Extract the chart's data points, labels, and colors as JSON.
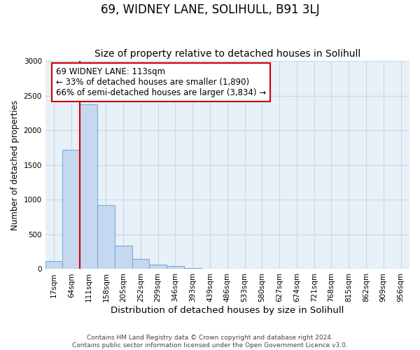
{
  "title": "69, WIDNEY LANE, SOLIHULL, B91 3LJ",
  "subtitle": "Size of property relative to detached houses in Solihull",
  "xlabel": "Distribution of detached houses by size in Solihull",
  "ylabel": "Number of detached properties",
  "bin_labels": [
    "17sqm",
    "64sqm",
    "111sqm",
    "158sqm",
    "205sqm",
    "252sqm",
    "299sqm",
    "346sqm",
    "393sqm",
    "439sqm",
    "486sqm",
    "533sqm",
    "580sqm",
    "627sqm",
    "674sqm",
    "721sqm",
    "768sqm",
    "815sqm",
    "862sqm",
    "909sqm",
    "956sqm"
  ],
  "bar_values": [
    120,
    1720,
    2380,
    920,
    340,
    150,
    70,
    40,
    15,
    8,
    5,
    2,
    2,
    0,
    0,
    0,
    0,
    0,
    0,
    0,
    0
  ],
  "bar_color": "#c5d8ef",
  "bar_edge_color": "#7badd4",
  "grid_color": "#c8d8e8",
  "bg_color": "#e8f0f8",
  "property_line_color": "#cc0000",
  "property_line_bin_index": 2,
  "annotation_text": "69 WIDNEY LANE: 113sqm\n← 33% of detached houses are smaller (1,890)\n66% of semi-detached houses are larger (3,834) →",
  "annotation_box_color": "#cc0000",
  "ylim": [
    0,
    3000
  ],
  "yticks": [
    0,
    500,
    1000,
    1500,
    2000,
    2500,
    3000
  ],
  "footnote": "Contains HM Land Registry data © Crown copyright and database right 2024.\nContains public sector information licensed under the Open Government Licence v3.0.",
  "title_fontsize": 12,
  "subtitle_fontsize": 10,
  "xlabel_fontsize": 9.5,
  "ylabel_fontsize": 8.5,
  "tick_fontsize": 7.5,
  "annotation_fontsize": 8.5,
  "footnote_fontsize": 6.5
}
